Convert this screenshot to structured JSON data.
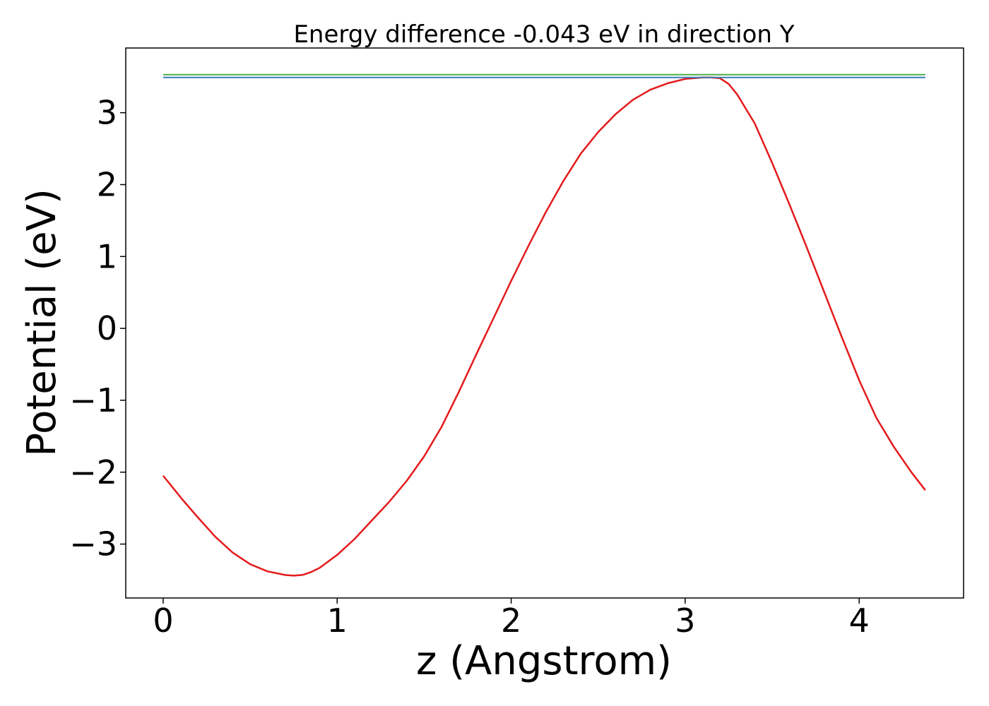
{
  "chart_data": {
    "type": "line",
    "title": "Energy difference -0.043 eV in direction Y",
    "xlabel": "z (Angstrom)",
    "ylabel": "Potential (eV)",
    "xlim": [
      -0.215,
      4.6
    ],
    "ylim": [
      -3.75,
      3.9
    ],
    "xticks": [
      0,
      1,
      2,
      3,
      4
    ],
    "xtick_labels": [
      "0",
      "1",
      "2",
      "3",
      "4"
    ],
    "yticks": [
      -3,
      -2,
      -1,
      0,
      1,
      2,
      3
    ],
    "ytick_labels": [
      "−3",
      "−2",
      "−1",
      "0",
      "1",
      "2",
      "3"
    ],
    "grid": false,
    "series": [
      {
        "color": "#e41a1c",
        "x": [
          0.0,
          0.1,
          0.2,
          0.3,
          0.4,
          0.5,
          0.6,
          0.7,
          0.75,
          0.8,
          0.85,
          0.9,
          1.0,
          1.1,
          1.2,
          1.3,
          1.4,
          1.5,
          1.6,
          1.7,
          1.8,
          1.9,
          2.0,
          2.1,
          2.2,
          2.3,
          2.4,
          2.5,
          2.6,
          2.7,
          2.8,
          2.9,
          3.0,
          3.1,
          3.15,
          3.2,
          3.25,
          3.3,
          3.4,
          3.5,
          3.6,
          3.7,
          3.8,
          3.9,
          4.0,
          4.1,
          4.2,
          4.3,
          4.38
        ],
        "values": [
          -2.05,
          -2.35,
          -2.63,
          -2.9,
          -3.12,
          -3.28,
          -3.38,
          -3.43,
          -3.44,
          -3.43,
          -3.39,
          -3.33,
          -3.15,
          -2.93,
          -2.67,
          -2.41,
          -2.12,
          -1.78,
          -1.37,
          -0.88,
          -0.36,
          0.15,
          0.66,
          1.15,
          1.62,
          2.05,
          2.43,
          2.73,
          2.98,
          3.18,
          3.32,
          3.41,
          3.47,
          3.49,
          3.49,
          3.48,
          3.4,
          3.25,
          2.85,
          2.3,
          1.72,
          1.12,
          0.5,
          -0.12,
          -0.72,
          -1.25,
          -1.65,
          -2.0,
          -2.25
        ]
      },
      {
        "color": "#4daf4a",
        "x": [
          0.0,
          4.38
        ],
        "values": [
          3.53,
          3.53
        ]
      },
      {
        "color": "#377eb8",
        "x": [
          0.0,
          4.38
        ],
        "values": [
          3.49,
          3.49
        ]
      }
    ]
  }
}
